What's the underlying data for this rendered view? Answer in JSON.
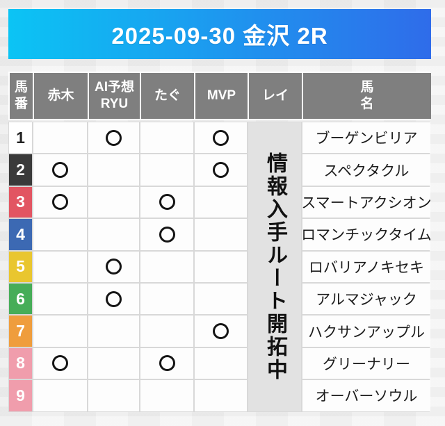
{
  "banner": {
    "title": "2025-09-30 金沢 2R",
    "gradient_from": "#0bc4f4",
    "gradient_to": "#2f6cea"
  },
  "table": {
    "headers": {
      "umaban": "馬\n番",
      "akagi": "赤木",
      "ryu": "AI予想\nRYU",
      "tagu": "たぐ",
      "mvp": "MVP",
      "rei": "レイ",
      "bamei": "馬\n名"
    },
    "rei_notice": "情報入手ルート開拓中",
    "header_bg": "#7f7f7f",
    "rows": [
      {
        "num": "1",
        "num_bg": "#ffffff",
        "num_fg": "#222222",
        "akagi": false,
        "ryu": true,
        "tagu": false,
        "mvp": true,
        "name": "ブーゲンビリア"
      },
      {
        "num": "2",
        "num_bg": "#3a3a3a",
        "num_fg": "#ffffff",
        "akagi": true,
        "ryu": false,
        "tagu": false,
        "mvp": true,
        "name": "スペクタクル"
      },
      {
        "num": "3",
        "num_bg": "#e25562",
        "num_fg": "#ffffff",
        "akagi": true,
        "ryu": false,
        "tagu": true,
        "mvp": false,
        "name": "スマートアクシオン"
      },
      {
        "num": "4",
        "num_bg": "#3c69b3",
        "num_fg": "#ffffff",
        "akagi": false,
        "ryu": false,
        "tagu": true,
        "mvp": false,
        "name": "ロマンチックタイム"
      },
      {
        "num": "5",
        "num_bg": "#e9c62f",
        "num_fg": "#ffffff",
        "akagi": false,
        "ryu": true,
        "tagu": false,
        "mvp": false,
        "name": "ロバリアノキセキ"
      },
      {
        "num": "6",
        "num_bg": "#46ad58",
        "num_fg": "#ffffff",
        "akagi": false,
        "ryu": true,
        "tagu": false,
        "mvp": false,
        "name": "アルマジャック"
      },
      {
        "num": "7",
        "num_bg": "#ef9d3d",
        "num_fg": "#ffffff",
        "akagi": false,
        "ryu": false,
        "tagu": false,
        "mvp": true,
        "name": "ハクサンアップル"
      },
      {
        "num": "8",
        "num_bg": "#f09dac",
        "num_fg": "#ffffff",
        "akagi": true,
        "ryu": false,
        "tagu": true,
        "mvp": false,
        "name": "グリーナリー"
      },
      {
        "num": "9",
        "num_bg": "#f09dac",
        "num_fg": "#ffffff",
        "akagi": false,
        "ryu": false,
        "tagu": false,
        "mvp": false,
        "name": "オーバーソウル"
      }
    ]
  }
}
